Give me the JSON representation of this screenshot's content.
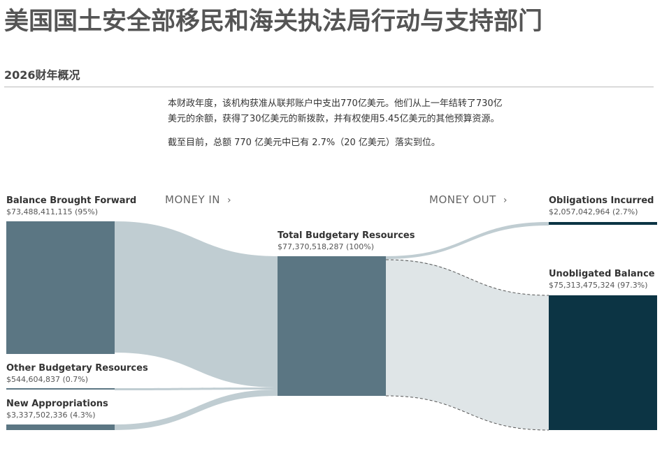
{
  "page": {
    "title": "美国国土安全部移民和海关执法局行动与支持部门",
    "section_title": "2026财年概况",
    "summary": [
      "本财政年度，该机构获准从联邦账户中支出770亿美元。他们从上一年结转了730亿美元的余额，获得了30亿美元的新拨款，并有权使用5.45亿美元的其他预算资源。",
      "截至目前，总额 770 亿美元中已有 2.7%（20 亿美元）落实到位。"
    ]
  },
  "chart_data": {
    "type": "sankey",
    "headers": {
      "money_in": "MONEY IN",
      "money_out": "MONEY OUT",
      "chevron": "›"
    },
    "nodes": {
      "balance_brought_forward": {
        "name": "Balance Brought Forward",
        "value": 73488411115,
        "value_text": "$73,488,411,115 (95%)",
        "color": "#5b7683"
      },
      "other_budgetary_resources": {
        "name": "Other Budgetary Resources",
        "value": 544604837,
        "value_text": "$544,604,837 (0.7%)",
        "color": "#5b7683"
      },
      "new_appropriations": {
        "name": "New Appropriations",
        "value": 3337502336,
        "value_text": "$3,337,502,336 (4.3%)",
        "color": "#5b7683"
      },
      "total_budgetary_resources": {
        "name": "Total Budgetary Resources",
        "value": 77370518287,
        "value_text": "$77,370,518,287 (100%)",
        "color": "#5b7683"
      },
      "obligations_incurred": {
        "name": "Obligations Incurred",
        "value": 2057042964,
        "value_text": "$2,057,042,964 (2.7%)",
        "color": "#0c3444"
      },
      "unobligated_balance": {
        "name": "Unobligated Balance",
        "value": 75313475324,
        "value_text": "$75,313,475,324 (97.3%)",
        "color": "#0c3444"
      }
    },
    "links": [
      {
        "source": "balance_brought_forward",
        "target": "total_budgetary_resources",
        "value": 73488411115
      },
      {
        "source": "other_budgetary_resources",
        "target": "total_budgetary_resources",
        "value": 544604837
      },
      {
        "source": "new_appropriations",
        "target": "total_budgetary_resources",
        "value": 3337502336
      },
      {
        "source": "total_budgetary_resources",
        "target": "obligations_incurred",
        "value": 2057042964
      },
      {
        "source": "total_budgetary_resources",
        "target": "unobligated_balance",
        "value": 75313475324,
        "style": "dashed"
      }
    ],
    "colors": {
      "link_in": "#c0cdd2",
      "link_out": "#dfe5e7",
      "link_out_small": "#c0cdd2",
      "link_stroke": "#555555"
    }
  }
}
